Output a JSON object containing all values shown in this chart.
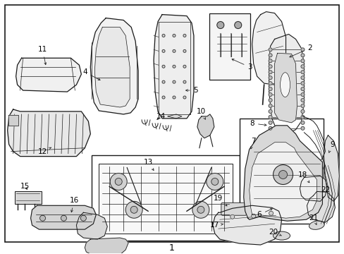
{
  "background_color": "#ffffff",
  "border_color": "#000000",
  "line_color": "#1a1a1a",
  "text_color": "#000000",
  "bottom_label": "1",
  "fig_w": 4.89,
  "fig_h": 3.6,
  "dpi": 100
}
